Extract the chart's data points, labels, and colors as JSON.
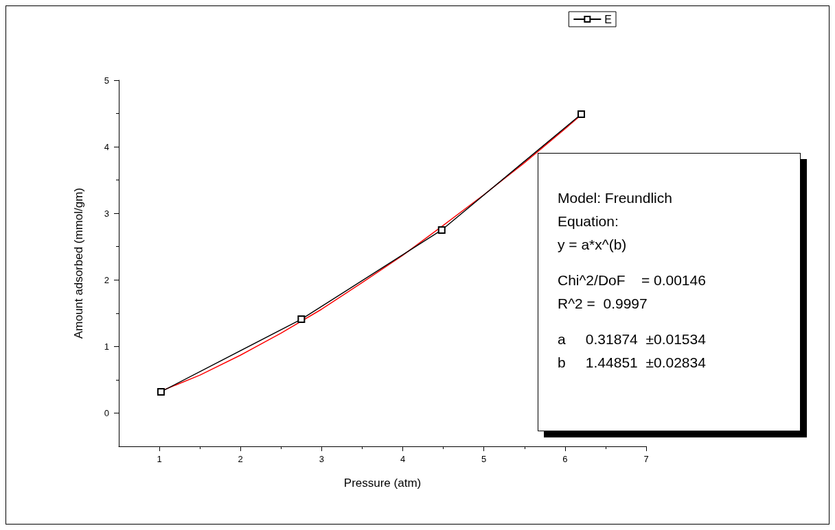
{
  "chart_data": {
    "type": "line",
    "xlabel": "Pressure (atm)",
    "ylabel": "Amount adsorbed (mmol/gm)",
    "xlim": [
      0.5,
      7
    ],
    "xticks": [
      1,
      2,
      3,
      4,
      5,
      6,
      7
    ],
    "ylim": [
      -0.5,
      5
    ],
    "yticks": [
      0,
      1,
      2,
      3,
      4,
      5
    ],
    "series": [
      {
        "name": "E",
        "color": "#000000",
        "marker": "square",
        "x": [
          1.02,
          2.75,
          4.48,
          6.2
        ],
        "values": [
          0.32,
          1.41,
          2.75,
          4.49
        ]
      },
      {
        "color": "#ff0000",
        "marker": "none",
        "x": [
          1,
          1.5,
          2,
          2.5,
          3,
          3.5,
          4,
          4.5,
          5,
          5.5,
          6,
          6.2
        ],
        "values": [
          0.32,
          0.57,
          0.87,
          1.2,
          1.56,
          1.96,
          2.37,
          2.82,
          3.28,
          3.76,
          4.27,
          4.48
        ]
      }
    ],
    "legend": "top right",
    "grid": false,
    "annotations": [
      "Model: Freundlich",
      "Equation:",
      "y = a*x^(b)",
      "Chi^2/DoF    = 0.00146",
      "R^2 =  0.9997",
      "a     0.31874  ±0.01534",
      "b     1.44851  ±0.02834"
    ]
  }
}
